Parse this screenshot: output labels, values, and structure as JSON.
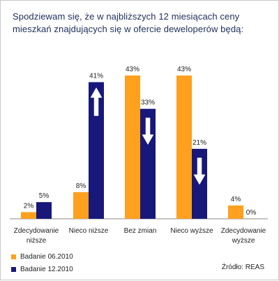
{
  "chart_data": {
    "type": "bar",
    "title": "Spodziewam się, że w najbliższych 12 miesiącach ceny mieszkań znajdujących się w ofercie deweloperów będą:",
    "categories": [
      [
        "Zdecydowanie",
        "niższe"
      ],
      [
        "Nieco niższe"
      ],
      [
        "Bez zmian"
      ],
      [
        "Nieco wyższe"
      ],
      [
        "Zdecydowanie",
        "wyższe"
      ]
    ],
    "series": [
      {
        "name": "Badanie 06.2010",
        "color": "#ffa01e",
        "values": [
          2,
          8,
          43,
          43,
          4
        ]
      },
      {
        "name": "Badanie 12.2010",
        "color": "#17187a",
        "values": [
          5,
          41,
          33,
          21,
          0
        ]
      }
    ],
    "value_suffix": "%",
    "ylim": [
      0,
      43
    ],
    "arrows": [
      {
        "category": 1,
        "series": 1,
        "direction": "up"
      },
      {
        "category": 2,
        "series": 1,
        "direction": "down"
      },
      {
        "category": 3,
        "series": 1,
        "direction": "down"
      }
    ],
    "legend_position": "bottom-left",
    "grid": false
  },
  "source": "Źródło: REAS"
}
